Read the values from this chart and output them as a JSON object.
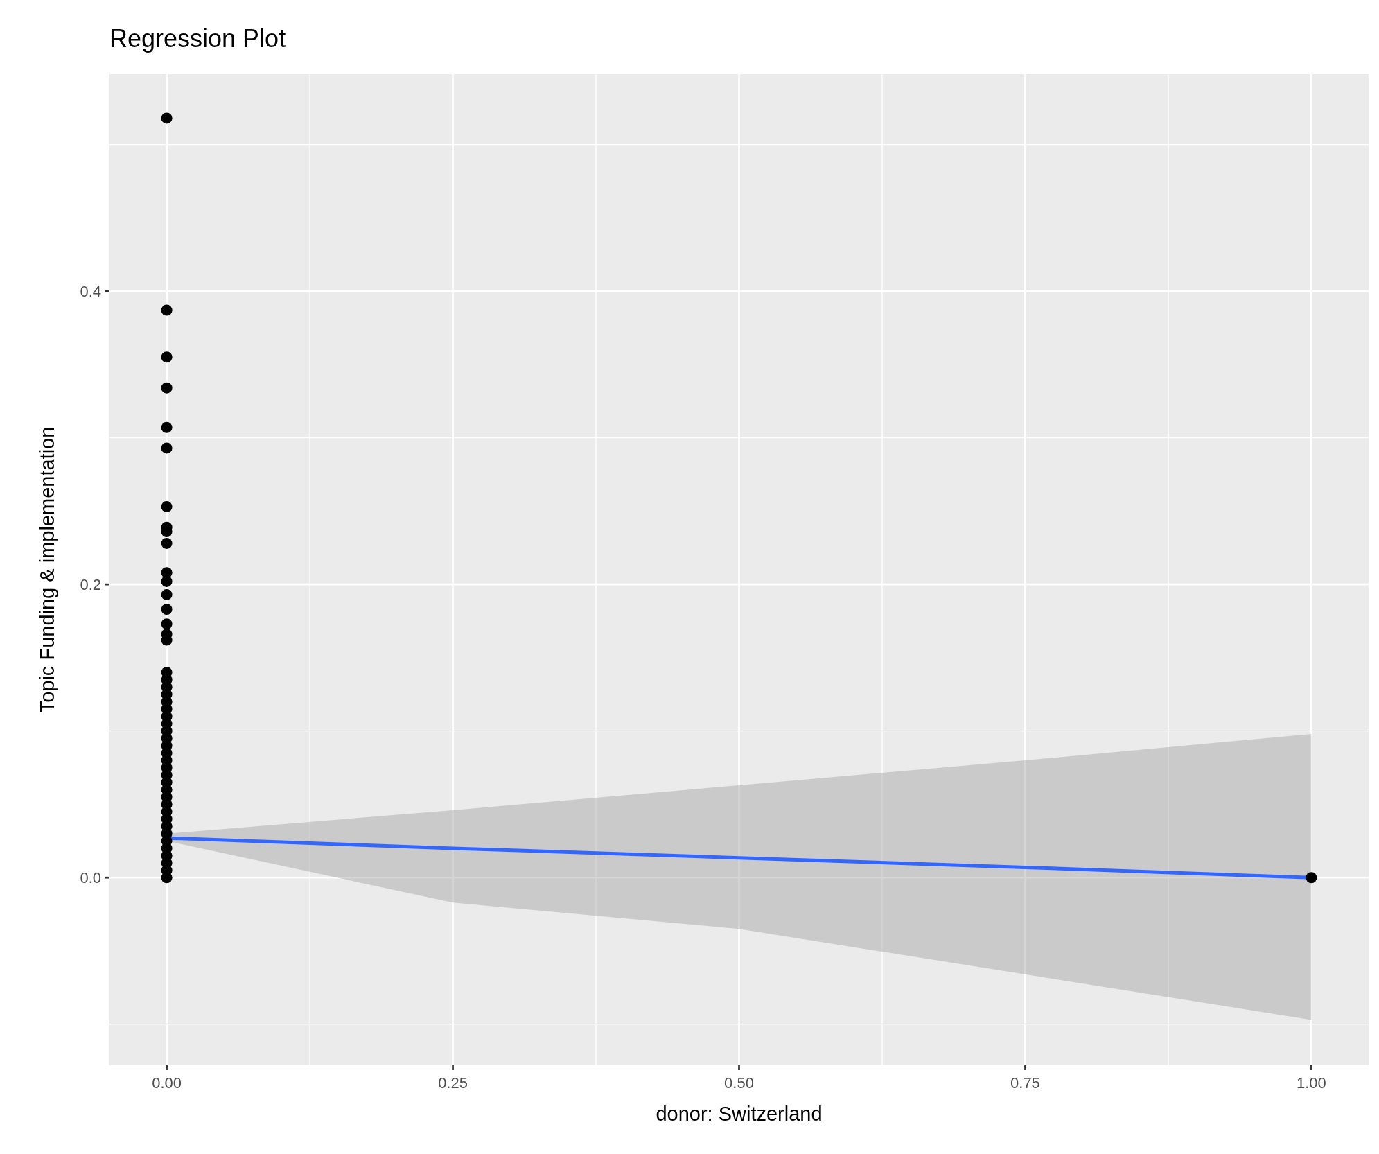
{
  "chart_data": {
    "type": "scatter",
    "title": "Regression Plot",
    "xlabel": "donor: Switzerland",
    "ylabel": "Topic Funding & implementation",
    "xlim": [
      -0.05,
      1.05
    ],
    "ylim": [
      -0.128,
      0.548
    ],
    "xticks": [
      {
        "value": 0,
        "label": "0.00"
      },
      {
        "value": 0.25,
        "label": "0.25"
      },
      {
        "value": 0.5,
        "label": "0.50"
      },
      {
        "value": 0.75,
        "label": "0.75"
      },
      {
        "value": 1,
        "label": "1.00"
      }
    ],
    "yticks": [
      {
        "value": 0,
        "label": "0.0"
      },
      {
        "value": 0.2,
        "label": "0.2"
      },
      {
        "value": 0.4,
        "label": "0.4"
      }
    ],
    "grid": true,
    "series": [
      {
        "marker": "circle",
        "color": "#000000",
        "x": [
          0,
          0,
          0,
          0,
          0,
          0,
          0,
          0,
          0,
          0,
          0,
          0,
          0,
          0,
          0,
          0,
          0,
          0,
          0,
          0,
          0,
          0,
          0,
          0,
          0,
          0,
          0,
          0,
          0,
          0,
          0,
          0,
          0,
          0,
          0,
          0,
          0,
          0,
          0,
          0,
          0,
          0,
          0,
          0,
          0,
          0,
          1
        ],
        "values": [
          0.518,
          0.387,
          0.355,
          0.334,
          0.307,
          0.293,
          0.253,
          0.239,
          0.236,
          0.228,
          0.208,
          0.202,
          0.193,
          0.183,
          0.173,
          0.166,
          0.162,
          0.14,
          0.135,
          0.13,
          0.125,
          0.12,
          0.115,
          0.11,
          0.105,
          0.1,
          0.095,
          0.09,
          0.085,
          0.08,
          0.075,
          0.07,
          0.065,
          0.06,
          0.055,
          0.05,
          0.045,
          0.04,
          0.035,
          0.03,
          0.025,
          0.02,
          0.015,
          0.01,
          0.005,
          0,
          0
        ]
      },
      {
        "type": "line",
        "color": "#3366ff",
        "x": [
          0,
          0.25,
          0.5,
          0.75,
          1
        ],
        "values": [
          0.027,
          0.02,
          0.0135,
          0.007,
          0
        ],
        "lower": [
          0.025,
          -0.017,
          -0.035,
          -0.066,
          -0.097
        ],
        "upper": [
          0.03,
          0.046,
          0.063,
          0.08,
          0.098
        ]
      }
    ]
  }
}
